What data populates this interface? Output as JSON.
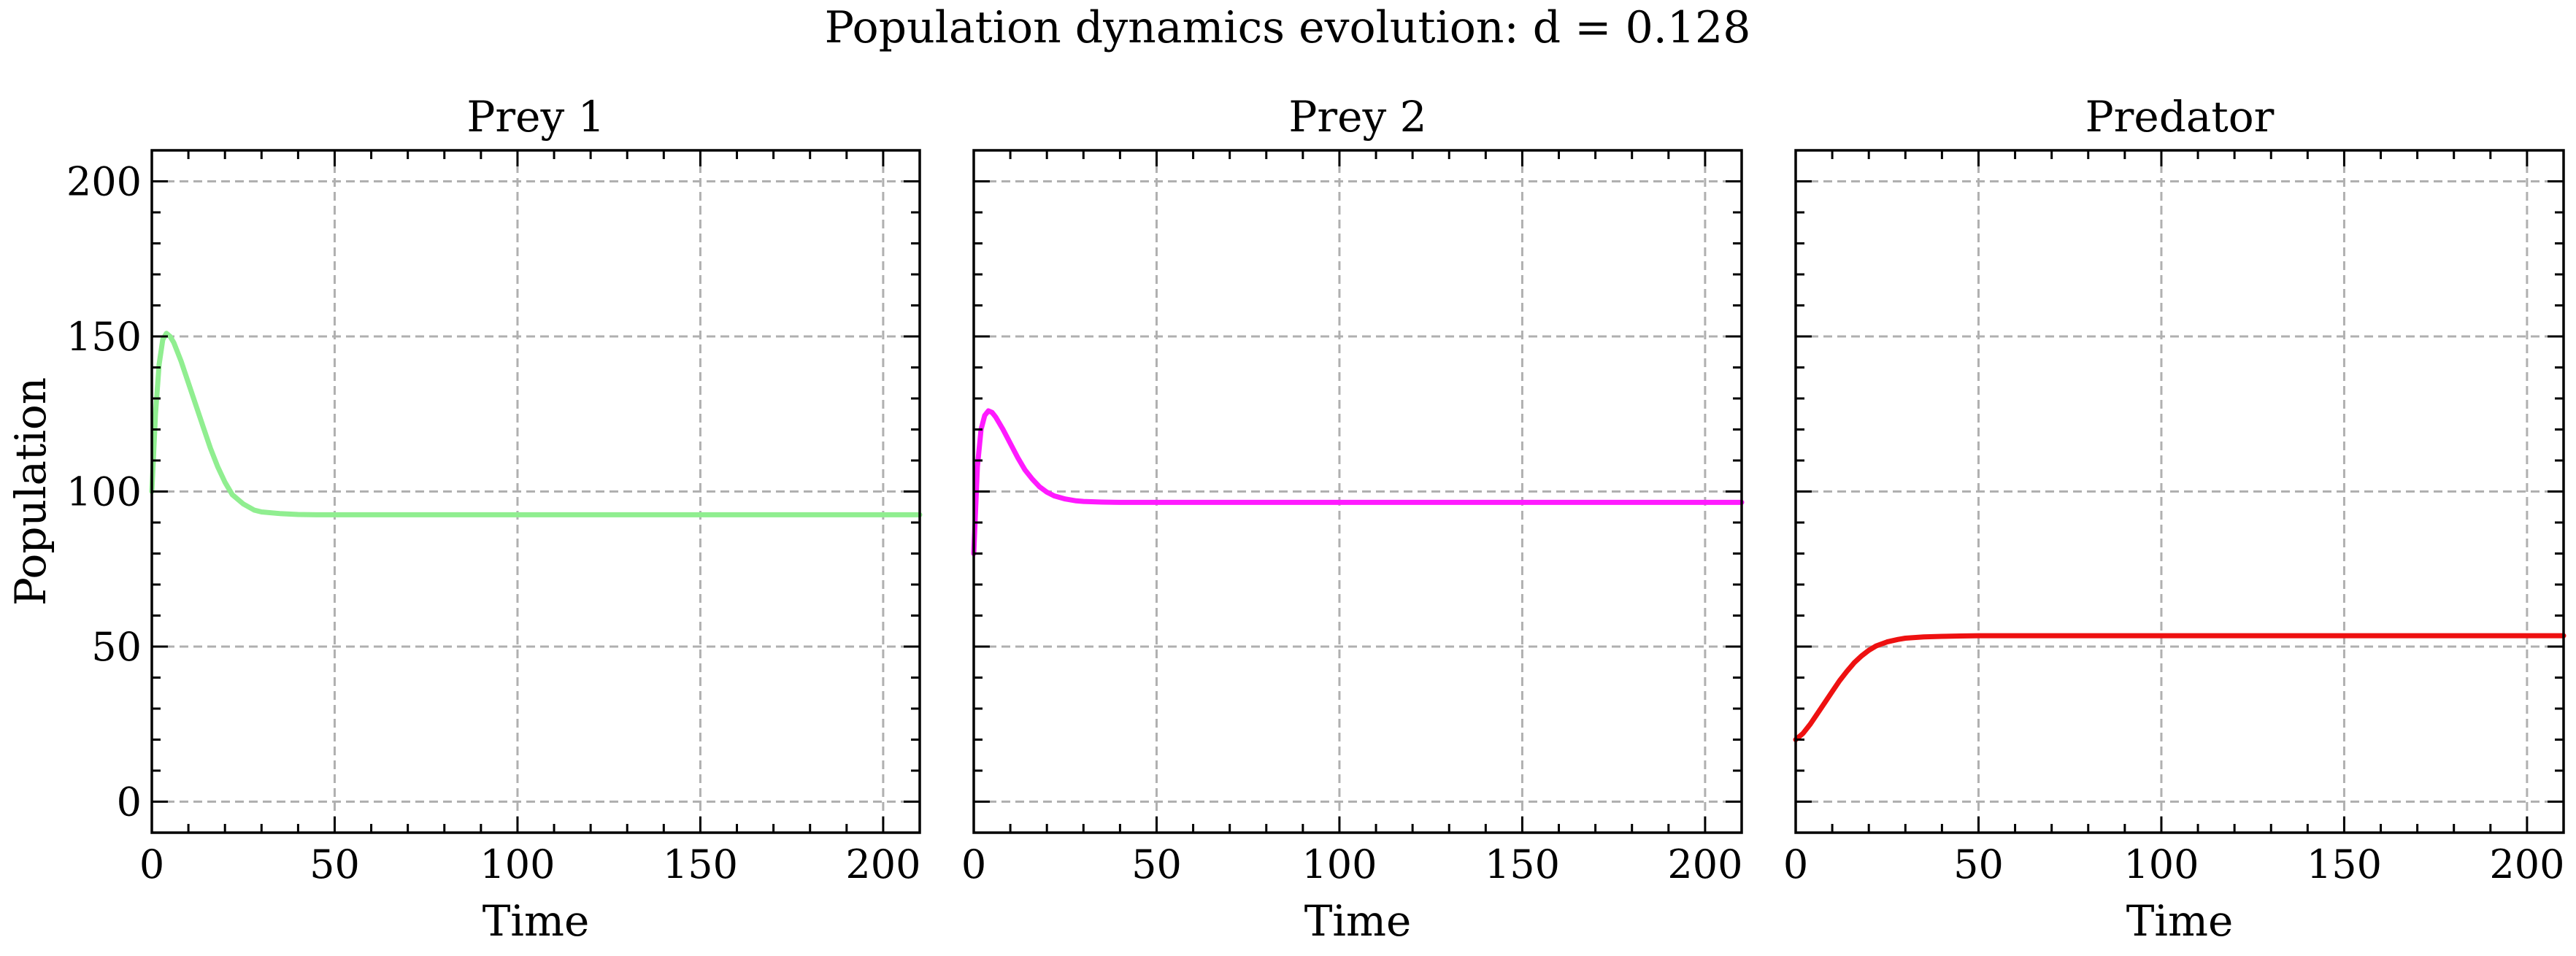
{
  "figure": {
    "suptitle": "Population dynamics evolution: d = 0.128"
  },
  "chart_data": [
    {
      "type": "line",
      "title": "Prey 1",
      "xlabel": "Time",
      "ylabel": "Population",
      "xlim": [
        0,
        210
      ],
      "ylim": [
        -10,
        210
      ],
      "xticks": [
        0,
        50,
        100,
        150,
        200
      ],
      "yticks": [
        0,
        50,
        100,
        150,
        200
      ],
      "xticklabels": [
        "0",
        "50",
        "100",
        "150",
        "200"
      ],
      "yticklabels": [
        "0",
        "50",
        "100",
        "150",
        "200"
      ],
      "grid": true,
      "series": [
        {
          "color": "#90ee90",
          "x": [
            0,
            1,
            2,
            3,
            4,
            5,
            6,
            8,
            10,
            12,
            14,
            16,
            18,
            20,
            22,
            25,
            28,
            30,
            35,
            40,
            45,
            50,
            60,
            80,
            100,
            150,
            200,
            210
          ],
          "y": [
            100,
            125,
            141,
            149,
            151,
            150,
            148,
            142,
            135,
            128,
            121,
            114,
            108,
            103,
            99,
            96,
            94,
            93.4,
            92.9,
            92.6,
            92.5,
            92.5,
            92.5,
            92.5,
            92.5,
            92.5,
            92.5,
            92.5
          ]
        }
      ]
    },
    {
      "type": "line",
      "title": "Prey 2",
      "xlabel": "Time",
      "ylabel": "",
      "xlim": [
        0,
        210
      ],
      "ylim": [
        -10,
        210
      ],
      "xticks": [
        0,
        50,
        100,
        150,
        200
      ],
      "xticklabels": [
        "0",
        "50",
        "100",
        "150",
        "200"
      ],
      "yticks": [
        0,
        50,
        100,
        150,
        200
      ],
      "grid": true,
      "series": [
        {
          "color": "#ff1aff",
          "x": [
            0,
            1,
            2,
            3,
            4,
            5,
            6,
            8,
            10,
            12,
            14,
            16,
            18,
            20,
            22,
            25,
            28,
            30,
            35,
            40,
            45,
            50,
            60,
            80,
            100,
            150,
            200,
            210
          ],
          "y": [
            80,
            108,
            120,
            124.5,
            126,
            125.5,
            124,
            120,
            115.5,
            111,
            107,
            104,
            101.5,
            99.8,
            98.6,
            97.6,
            97,
            96.8,
            96.6,
            96.5,
            96.5,
            96.5,
            96.5,
            96.5,
            96.5,
            96.5,
            96.5,
            96.5
          ]
        }
      ]
    },
    {
      "type": "line",
      "title": "Predator",
      "xlabel": "Time",
      "ylabel": "",
      "xlim": [
        0,
        210
      ],
      "ylim": [
        -10,
        210
      ],
      "xticks": [
        0,
        50,
        100,
        150,
        200
      ],
      "xticklabels": [
        "0",
        "50",
        "100",
        "150",
        "200"
      ],
      "yticks": [
        0,
        50,
        100,
        150,
        200
      ],
      "grid": true,
      "series": [
        {
          "color": "#ee1111",
          "x": [
            0,
            2,
            4,
            6,
            8,
            10,
            12,
            14,
            16,
            18,
            20,
            22,
            25,
            28,
            30,
            35,
            40,
            45,
            50,
            60,
            80,
            100,
            150,
            200,
            210
          ],
          "y": [
            20,
            22,
            25,
            28.5,
            32,
            35.5,
            39,
            42,
            44.8,
            47,
            48.8,
            50.2,
            51.5,
            52.3,
            52.7,
            53.1,
            53.3,
            53.4,
            53.5,
            53.5,
            53.5,
            53.5,
            53.5,
            53.5,
            53.5
          ]
        }
      ]
    }
  ]
}
